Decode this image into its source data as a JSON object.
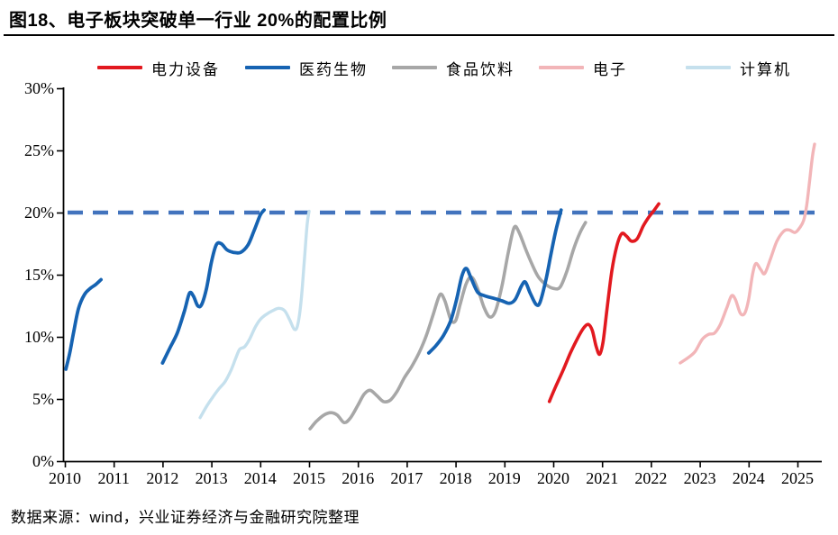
{
  "title": "图18、电子板块突破单一行业 20%的配置比例",
  "footer": "数据来源：wind，兴业证券经济与金融研究院整理",
  "colors": {
    "power": "#e2191f",
    "pharma": "#1663b2",
    "food": "#a7a7a7",
    "electronics": "#f2b5b8",
    "computer": "#c5e0ed",
    "threshold": "#4273bd",
    "axis": "#000000"
  },
  "legend": [
    {
      "key": "power",
      "label": "电力设备",
      "color": "#e2191f"
    },
    {
      "key": "pharma",
      "label": "医药生物",
      "color": "#1663b2"
    },
    {
      "key": "food",
      "label": "食品饮料",
      "color": "#a7a7a7"
    },
    {
      "key": "electronics",
      "label": "电子",
      "color": "#f2b5b8"
    },
    {
      "key": "computer",
      "label": "计算机",
      "color": "#c5e0ed"
    }
  ],
  "chart_data": {
    "type": "line",
    "title": "图18、电子板块突破单一行业 20%的配置比例",
    "xlabel": "",
    "ylabel": "",
    "x_ticks": [
      2010,
      2011,
      2012,
      2013,
      2014,
      2015,
      2016,
      2017,
      2018,
      2019,
      2020,
      2021,
      2022,
      2023,
      2024,
      2025
    ],
    "y_ticks": [
      0,
      5,
      10,
      15,
      20,
      25,
      30
    ],
    "y_tick_labels": [
      "0%",
      "5%",
      "10%",
      "15%",
      "20%",
      "25%",
      "30%"
    ],
    "ylim": [
      0,
      30
    ],
    "xlim": [
      2010,
      2025.55
    ],
    "grid": false,
    "legend_position": "top",
    "threshold": {
      "value": 20,
      "style": "dashed",
      "color": "#4273bd"
    },
    "unit": "percent",
    "draw_order": [
      "food",
      "computer",
      "electronics",
      "pharma",
      "power"
    ],
    "series": [
      {
        "key": "power",
        "name": "电力设备",
        "color": "#e2191f",
        "width": 3.6,
        "segments": [
          [
            [
              2019.92,
              4.8
            ],
            [
              2020.05,
              6.0
            ],
            [
              2020.2,
              7.3
            ],
            [
              2020.35,
              8.7
            ],
            [
              2020.5,
              9.9
            ],
            [
              2020.62,
              10.7
            ],
            [
              2020.72,
              11.0
            ],
            [
              2020.8,
              10.5
            ],
            [
              2020.88,
              9.2
            ],
            [
              2020.95,
              8.6
            ],
            [
              2021.02,
              9.6
            ],
            [
              2021.1,
              12.2
            ],
            [
              2021.2,
              15.3
            ],
            [
              2021.3,
              17.3
            ],
            [
              2021.4,
              18.3
            ],
            [
              2021.5,
              18.1
            ],
            [
              2021.6,
              17.7
            ],
            [
              2021.72,
              17.9
            ],
            [
              2021.84,
              18.9
            ],
            [
              2021.95,
              19.6
            ],
            [
              2022.05,
              20.1
            ],
            [
              2022.16,
              20.7
            ]
          ]
        ]
      },
      {
        "key": "pharma",
        "name": "医药生物",
        "color": "#1663b2",
        "width": 3.8,
        "segments": [
          [
            [
              2010.02,
              7.4
            ],
            [
              2010.1,
              8.7
            ],
            [
              2010.18,
              10.4
            ],
            [
              2010.28,
              12.3
            ],
            [
              2010.4,
              13.4
            ],
            [
              2010.52,
              13.9
            ],
            [
              2010.63,
              14.2
            ],
            [
              2010.74,
              14.6
            ]
          ],
          [
            [
              2012.0,
              7.9
            ],
            [
              2012.15,
              9.1
            ],
            [
              2012.3,
              10.3
            ],
            [
              2012.45,
              12.1
            ],
            [
              2012.55,
              13.5
            ],
            [
              2012.63,
              13.3
            ],
            [
              2012.72,
              12.5
            ],
            [
              2012.8,
              12.6
            ],
            [
              2012.9,
              13.9
            ],
            [
              2013.0,
              16.0
            ],
            [
              2013.1,
              17.4
            ],
            [
              2013.2,
              17.5
            ],
            [
              2013.32,
              17.0
            ],
            [
              2013.45,
              16.8
            ],
            [
              2013.6,
              16.8
            ],
            [
              2013.75,
              17.4
            ],
            [
              2013.88,
              18.6
            ],
            [
              2014.0,
              19.8
            ],
            [
              2014.08,
              20.2
            ]
          ],
          [
            [
              2017.45,
              8.7
            ],
            [
              2017.6,
              9.3
            ],
            [
              2017.75,
              10.1
            ],
            [
              2017.9,
              11.3
            ],
            [
              2018.02,
              13.0
            ],
            [
              2018.13,
              14.9
            ],
            [
              2018.22,
              15.5
            ],
            [
              2018.32,
              14.7
            ],
            [
              2018.45,
              13.6
            ],
            [
              2018.6,
              13.3
            ],
            [
              2018.78,
              13.1
            ],
            [
              2018.95,
              12.9
            ],
            [
              2019.1,
              12.7
            ],
            [
              2019.22,
              13.0
            ],
            [
              2019.35,
              14.1
            ],
            [
              2019.43,
              14.4
            ],
            [
              2019.53,
              13.5
            ],
            [
              2019.65,
              12.6
            ],
            [
              2019.73,
              12.8
            ],
            [
              2019.85,
              14.6
            ],
            [
              2019.95,
              16.6
            ],
            [
              2020.05,
              18.5
            ],
            [
              2020.16,
              20.2
            ]
          ]
        ]
      },
      {
        "key": "food",
        "name": "食品饮料",
        "color": "#a7a7a7",
        "width": 3.6,
        "segments": [
          [
            [
              2015.02,
              2.6
            ],
            [
              2015.15,
              3.2
            ],
            [
              2015.3,
              3.7
            ],
            [
              2015.45,
              3.9
            ],
            [
              2015.58,
              3.7
            ],
            [
              2015.72,
              3.1
            ],
            [
              2015.85,
              3.5
            ],
            [
              2016.0,
              4.5
            ],
            [
              2016.13,
              5.4
            ],
            [
              2016.25,
              5.7
            ],
            [
              2016.38,
              5.3
            ],
            [
              2016.52,
              4.8
            ],
            [
              2016.66,
              4.9
            ],
            [
              2016.8,
              5.6
            ],
            [
              2016.95,
              6.7
            ],
            [
              2017.1,
              7.6
            ],
            [
              2017.25,
              8.7
            ],
            [
              2017.4,
              10.1
            ],
            [
              2017.55,
              11.9
            ],
            [
              2017.68,
              13.4
            ],
            [
              2017.78,
              12.9
            ],
            [
              2017.9,
              11.4
            ],
            [
              2018.0,
              11.3
            ],
            [
              2018.1,
              12.7
            ],
            [
              2018.22,
              14.3
            ],
            [
              2018.33,
              14.8
            ],
            [
              2018.45,
              13.9
            ],
            [
              2018.58,
              12.4
            ],
            [
              2018.7,
              11.6
            ],
            [
              2018.82,
              12.1
            ],
            [
              2018.95,
              14.1
            ],
            [
              2019.08,
              16.8
            ],
            [
              2019.2,
              18.8
            ],
            [
              2019.3,
              18.4
            ],
            [
              2019.43,
              17.1
            ],
            [
              2019.57,
              15.8
            ],
            [
              2019.7,
              14.8
            ],
            [
              2019.85,
              14.2
            ],
            [
              2020.0,
              13.9
            ],
            [
              2020.14,
              14.0
            ],
            [
              2020.28,
              15.3
            ],
            [
              2020.42,
              17.1
            ],
            [
              2020.55,
              18.4
            ],
            [
              2020.66,
              19.2
            ]
          ]
        ]
      },
      {
        "key": "electronics",
        "name": "电子",
        "color": "#f2b5b8",
        "width": 3.4,
        "segments": [
          [
            [
              2022.6,
              7.9
            ],
            [
              2022.75,
              8.3
            ],
            [
              2022.9,
              8.8
            ],
            [
              2023.05,
              9.8
            ],
            [
              2023.18,
              10.2
            ],
            [
              2023.3,
              10.3
            ],
            [
              2023.42,
              11.0
            ],
            [
              2023.55,
              12.3
            ],
            [
              2023.65,
              13.3
            ],
            [
              2023.73,
              13.0
            ],
            [
              2023.83,
              11.9
            ],
            [
              2023.92,
              11.9
            ],
            [
              2024.0,
              13.0
            ],
            [
              2024.08,
              15.0
            ],
            [
              2024.15,
              15.9
            ],
            [
              2024.25,
              15.4
            ],
            [
              2024.33,
              15.1
            ],
            [
              2024.45,
              16.3
            ],
            [
              2024.58,
              17.7
            ],
            [
              2024.72,
              18.5
            ],
            [
              2024.83,
              18.6
            ],
            [
              2024.95,
              18.4
            ],
            [
              2025.05,
              18.8
            ],
            [
              2025.13,
              19.4
            ],
            [
              2025.19,
              20.6
            ],
            [
              2025.25,
              22.6
            ],
            [
              2025.31,
              24.6
            ],
            [
              2025.35,
              25.5
            ]
          ]
        ]
      },
      {
        "key": "computer",
        "name": "计算机",
        "color": "#c5e0ed",
        "width": 3.4,
        "segments": [
          [
            [
              2012.77,
              3.5
            ],
            [
              2012.9,
              4.4
            ],
            [
              2013.02,
              5.1
            ],
            [
              2013.15,
              5.8
            ],
            [
              2013.28,
              6.4
            ],
            [
              2013.4,
              7.3
            ],
            [
              2013.5,
              8.3
            ],
            [
              2013.58,
              9.0
            ],
            [
              2013.68,
              9.2
            ],
            [
              2013.78,
              9.8
            ],
            [
              2013.9,
              10.8
            ],
            [
              2014.0,
              11.4
            ],
            [
              2014.12,
              11.8
            ],
            [
              2014.25,
              12.1
            ],
            [
              2014.38,
              12.3
            ],
            [
              2014.5,
              12.1
            ],
            [
              2014.6,
              11.4
            ],
            [
              2014.7,
              10.6
            ],
            [
              2014.77,
              11.0
            ],
            [
              2014.84,
              13.0
            ],
            [
              2014.9,
              16.0
            ],
            [
              2014.96,
              19.0
            ],
            [
              2015.0,
              20.1
            ]
          ]
        ]
      }
    ]
  }
}
